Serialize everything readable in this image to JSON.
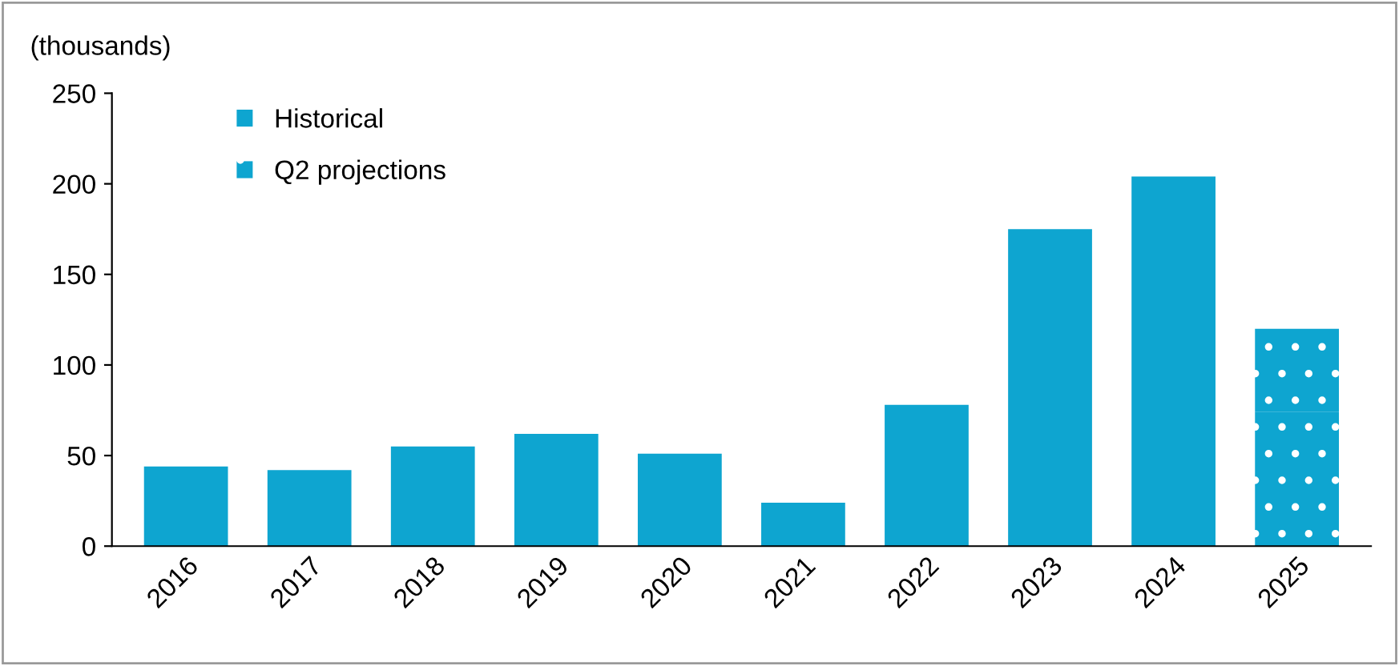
{
  "chart_data": {
    "type": "bar",
    "ylabel": "(thousands)",
    "stacked": true,
    "categories": [
      "2016",
      "2017",
      "2018",
      "2019",
      "2020",
      "2021",
      "2022",
      "2023",
      "2024",
      "2025"
    ],
    "series": [
      {
        "name": "Historical",
        "color": "#0ea5d0",
        "values": [
          44,
          42,
          55,
          62,
          51,
          24,
          78,
          175,
          204,
          null
        ]
      },
      {
        "name": "Q2 projections",
        "color": "#0ea5d0",
        "values": [
          null,
          null,
          null,
          null,
          null,
          null,
          null,
          null,
          null,
          74
        ]
      },
      {
        "color": "#0ea5d0",
        "values": [
          null,
          null,
          null,
          null,
          null,
          null,
          null,
          null,
          null,
          46
        ]
      }
    ],
    "ylim": [
      0,
      250
    ],
    "yticks": [
      0,
      50,
      100,
      150,
      200,
      250
    ],
    "grid": false,
    "legend": "top left"
  }
}
